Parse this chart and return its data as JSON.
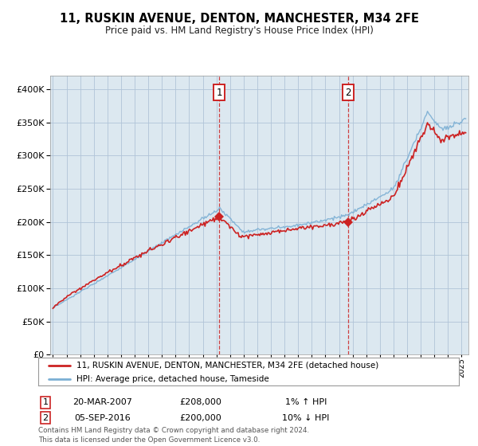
{
  "title": "11, RUSKIN AVENUE, DENTON, MANCHESTER, M34 2FE",
  "subtitle": "Price paid vs. HM Land Registry's House Price Index (HPI)",
  "legend_line1": "11, RUSKIN AVENUE, DENTON, MANCHESTER, M34 2FE (detached house)",
  "legend_line2": "HPI: Average price, detached house, Tameside",
  "footnote": "Contains HM Land Registry data © Crown copyright and database right 2024.\nThis data is licensed under the Open Government Licence v3.0.",
  "marker1_date": "20-MAR-2007",
  "marker1_price": "£208,000",
  "marker1_hpi": "1% ↑ HPI",
  "marker2_date": "05-SEP-2016",
  "marker2_price": "£200,000",
  "marker2_hpi": "10% ↓ HPI",
  "hpi_color": "#7bafd4",
  "sale_color": "#cc2222",
  "marker_color": "#cc2222",
  "bg_color": "#dce8f0",
  "plot_bg": "#ffffff",
  "grid_color": "#b0c4d8",
  "ylim": [
    0,
    420000
  ],
  "yticks": [
    0,
    50000,
    100000,
    150000,
    200000,
    250000,
    300000,
    350000,
    400000
  ],
  "xlim_start": 1994.8,
  "xlim_end": 2025.5,
  "sale1_x": 2007.21,
  "sale1_y": 208000,
  "sale2_x": 2016.67,
  "sale2_y": 200000
}
